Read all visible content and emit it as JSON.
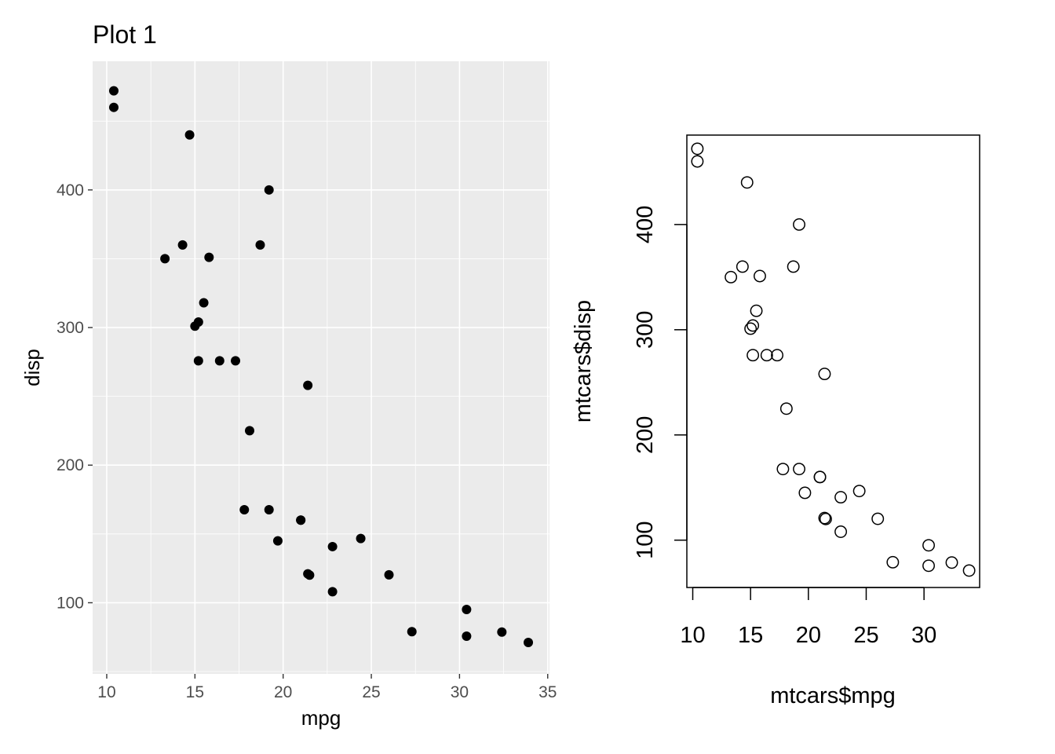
{
  "chart_data": [
    {
      "type": "scatter",
      "title": "Plot 1",
      "xlabel": "mpg",
      "ylabel": "disp",
      "xlim": [
        9.2,
        35.1
      ],
      "ylim": [
        48.3,
        493.5
      ],
      "xticks": [
        "10",
        "15",
        "20",
        "25",
        "30",
        "35"
      ],
      "yticks": [
        "100",
        "200",
        "300",
        "400"
      ],
      "grid": true,
      "marker": "filled-circle",
      "points": [
        {
          "x": 21.0,
          "y": 160
        },
        {
          "x": 21.0,
          "y": 160
        },
        {
          "x": 22.8,
          "y": 108
        },
        {
          "x": 21.4,
          "y": 258
        },
        {
          "x": 18.7,
          "y": 360
        },
        {
          "x": 18.1,
          "y": 225
        },
        {
          "x": 14.3,
          "y": 360
        },
        {
          "x": 24.4,
          "y": 146.7
        },
        {
          "x": 22.8,
          "y": 140.8
        },
        {
          "x": 19.2,
          "y": 167.6
        },
        {
          "x": 17.8,
          "y": 167.6
        },
        {
          "x": 16.4,
          "y": 275.8
        },
        {
          "x": 17.3,
          "y": 275.8
        },
        {
          "x": 15.2,
          "y": 275.8
        },
        {
          "x": 10.4,
          "y": 472
        },
        {
          "x": 10.4,
          "y": 460
        },
        {
          "x": 14.7,
          "y": 440
        },
        {
          "x": 32.4,
          "y": 78.7
        },
        {
          "x": 30.4,
          "y": 75.7
        },
        {
          "x": 33.9,
          "y": 71.1
        },
        {
          "x": 21.5,
          "y": 120.1
        },
        {
          "x": 15.5,
          "y": 318
        },
        {
          "x": 15.2,
          "y": 304
        },
        {
          "x": 13.3,
          "y": 350
        },
        {
          "x": 19.2,
          "y": 400
        },
        {
          "x": 27.3,
          "y": 79
        },
        {
          "x": 26.0,
          "y": 120.3
        },
        {
          "x": 30.4,
          "y": 95.1
        },
        {
          "x": 15.8,
          "y": 351
        },
        {
          "x": 19.7,
          "y": 145
        },
        {
          "x": 15.0,
          "y": 301
        },
        {
          "x": 21.4,
          "y": 121
        }
      ]
    },
    {
      "type": "scatter",
      "title": "",
      "xlabel": "mtcars$mpg",
      "ylabel": "mtcars$disp",
      "xlim": [
        9.49,
        34.81
      ],
      "ylim": [
        55.0,
        485.0
      ],
      "xticks": [
        "10",
        "15",
        "20",
        "25",
        "30"
      ],
      "yticks": [
        "100",
        "200",
        "300",
        "400"
      ],
      "grid": false,
      "marker": "open-circle",
      "points": [
        {
          "x": 21.0,
          "y": 160
        },
        {
          "x": 21.0,
          "y": 160
        },
        {
          "x": 22.8,
          "y": 108
        },
        {
          "x": 21.4,
          "y": 258
        },
        {
          "x": 18.7,
          "y": 360
        },
        {
          "x": 18.1,
          "y": 225
        },
        {
          "x": 14.3,
          "y": 360
        },
        {
          "x": 24.4,
          "y": 146.7
        },
        {
          "x": 22.8,
          "y": 140.8
        },
        {
          "x": 19.2,
          "y": 167.6
        },
        {
          "x": 17.8,
          "y": 167.6
        },
        {
          "x": 16.4,
          "y": 275.8
        },
        {
          "x": 17.3,
          "y": 275.8
        },
        {
          "x": 15.2,
          "y": 275.8
        },
        {
          "x": 10.4,
          "y": 472
        },
        {
          "x": 10.4,
          "y": 460
        },
        {
          "x": 14.7,
          "y": 440
        },
        {
          "x": 32.4,
          "y": 78.7
        },
        {
          "x": 30.4,
          "y": 75.7
        },
        {
          "x": 33.9,
          "y": 71.1
        },
        {
          "x": 21.5,
          "y": 120.1
        },
        {
          "x": 15.5,
          "y": 318
        },
        {
          "x": 15.2,
          "y": 304
        },
        {
          "x": 13.3,
          "y": 350
        },
        {
          "x": 19.2,
          "y": 400
        },
        {
          "x": 27.3,
          "y": 79
        },
        {
          "x": 26.0,
          "y": 120.3
        },
        {
          "x": 30.4,
          "y": 95.1
        },
        {
          "x": 15.8,
          "y": 351
        },
        {
          "x": 19.7,
          "y": 145
        },
        {
          "x": 15.0,
          "y": 301
        },
        {
          "x": 21.4,
          "y": 121
        }
      ]
    }
  ]
}
